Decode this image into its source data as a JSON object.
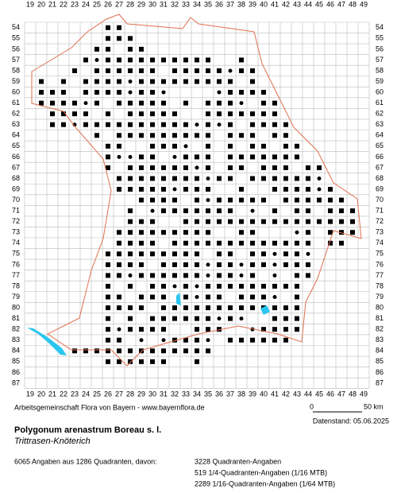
{
  "grid": {
    "columns": [
      "19",
      "20",
      "21",
      "22",
      "23",
      "24",
      "25",
      "26",
      "27",
      "28",
      "29",
      "30",
      "31",
      "32",
      "33",
      "34",
      "35",
      "36",
      "37",
      "38",
      "39",
      "40",
      "41",
      "42",
      "43",
      "44",
      "45",
      "46",
      "47",
      "48",
      "49"
    ],
    "rows": [
      "54",
      "55",
      "56",
      "57",
      "58",
      "59",
      "60",
      "61",
      "62",
      "63",
      "64",
      "65",
      "66",
      "67",
      "68",
      "69",
      "70",
      "71",
      "72",
      "73",
      "74",
      "75",
      "76",
      "77",
      "78",
      "79",
      "80",
      "81",
      "82",
      "83",
      "84",
      "85",
      "86",
      "87"
    ]
  },
  "footer": {
    "credit": "Arbeitsgemeinschaft Flora von Bayern - www.bayernflora.de",
    "scale_start": "0",
    "scale_end": "50 km",
    "date": "Datenstand: 05.06.2025"
  },
  "species": {
    "name": "Polygonum arenastrum Boreau s. l.",
    "common_name": "Trittrasen-Knöterich"
  },
  "stats": {
    "summary": "6065 Angaben aus 1286 Quadranten, davon:",
    "lines": [
      "3228 Quadranten-Angaben",
      "519 1/4-Quadranten-Angaben (1/16 MTB)",
      "2289 1/16-Quadranten-Angaben (1/64 MTB)"
    ]
  }
}
